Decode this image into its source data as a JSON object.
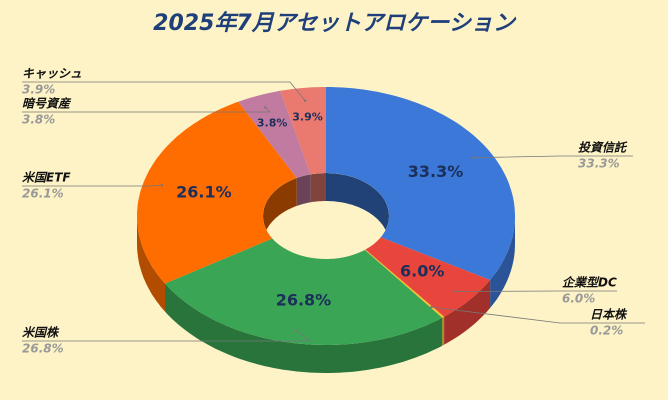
{
  "chart_data": {
    "type": "pie",
    "title": "2025年7月アセットアロケーション",
    "categories": [
      "投資信託",
      "企業型DC",
      "日本株",
      "米国株",
      "米国ETF",
      "暗号資産",
      "キャッシュ"
    ],
    "values": [
      33.3,
      6.0,
      0.2,
      26.8,
      26.1,
      3.8,
      3.9
    ],
    "value_labels": [
      "33.3%",
      "6.0%",
      "0.2%",
      "26.8%",
      "26.1%",
      "3.8%",
      "3.9%"
    ],
    "colors": [
      "#3c78d8",
      "#e8453c",
      "#f4c430",
      "#3aa655",
      "#ff6d01",
      "#c27ba0",
      "#ea7a6f"
    ]
  }
}
